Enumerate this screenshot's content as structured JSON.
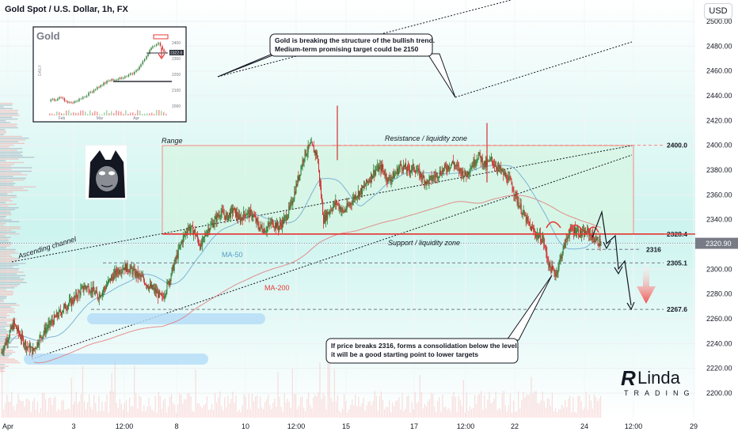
{
  "header": {
    "title": "Gold Spot / U.S. Dollar, 1h, FX",
    "currency_button": "USD"
  },
  "chart_data": {
    "type": "candlestick",
    "symbol": "Gold Spot / U.S. Dollar",
    "timeframe": "1h",
    "exchange": "FX",
    "current_price": "2320.90",
    "y_axis": {
      "ticks": [
        2500,
        2480,
        2460,
        2440,
        2420,
        2400,
        2380,
        2360,
        2340,
        2320,
        2300,
        2280,
        2260,
        2240,
        2220,
        2200
      ],
      "tick_labels": [
        "2500.00",
        "2480.00",
        "2460.00",
        "2440.00",
        "2420.00",
        "2400.00",
        "2380.00",
        "2360.00",
        "2340.00",
        "2320.00",
        "2300.00",
        "2280.00",
        "2260.00",
        "2240.00",
        "2220.00",
        "2200.00"
      ],
      "range": [
        2186,
        2510
      ]
    },
    "x_axis": {
      "ticks": [
        "Apr",
        "3",
        "12:00",
        "8",
        "10",
        "12:00",
        "15",
        "17",
        "12:00",
        "22",
        "24",
        "12:00",
        "29"
      ]
    },
    "close_path": [
      [
        0,
        2232
      ],
      [
        1,
        2244
      ],
      [
        2,
        2256
      ],
      [
        3,
        2246
      ],
      [
        4,
        2238
      ],
      [
        5,
        2234
      ],
      [
        6,
        2244
      ],
      [
        7,
        2252
      ],
      [
        8,
        2258
      ],
      [
        9,
        2264
      ],
      [
        10,
        2270
      ],
      [
        11,
        2274
      ],
      [
        12,
        2280
      ],
      [
        13,
        2286
      ],
      [
        14,
        2284
      ],
      [
        15,
        2278
      ],
      [
        16,
        2284
      ],
      [
        17,
        2292
      ],
      [
        18,
        2298
      ],
      [
        19,
        2302
      ],
      [
        20,
        2300
      ],
      [
        21,
        2296
      ],
      [
        22,
        2292
      ],
      [
        23,
        2286
      ],
      [
        24,
        2282
      ],
      [
        25,
        2276
      ],
      [
        26,
        2290
      ],
      [
        27,
        2306
      ],
      [
        28,
        2322
      ],
      [
        29,
        2334
      ],
      [
        30,
        2330
      ],
      [
        31,
        2318
      ],
      [
        32,
        2332
      ],
      [
        33,
        2338
      ],
      [
        34,
        2346
      ],
      [
        35,
        2342
      ],
      [
        36,
        2348
      ],
      [
        37,
        2340
      ],
      [
        38,
        2346
      ],
      [
        39,
        2344
      ],
      [
        40,
        2334
      ],
      [
        41,
        2332
      ],
      [
        42,
        2338
      ],
      [
        43,
        2334
      ],
      [
        44,
        2340
      ],
      [
        45,
        2352
      ],
      [
        46,
        2372
      ],
      [
        47,
        2392
      ],
      [
        48,
        2400
      ],
      [
        49,
        2392
      ],
      [
        50,
        2340
      ],
      [
        51,
        2348
      ],
      [
        52,
        2354
      ],
      [
        53,
        2346
      ],
      [
        54,
        2352
      ],
      [
        55,
        2360
      ],
      [
        56,
        2364
      ],
      [
        57,
        2372
      ],
      [
        58,
        2380
      ],
      [
        59,
        2382
      ],
      [
        60,
        2372
      ],
      [
        61,
        2376
      ],
      [
        62,
        2384
      ],
      [
        63,
        2380
      ],
      [
        64,
        2382
      ],
      [
        65,
        2376
      ],
      [
        66,
        2370
      ],
      [
        67,
        2374
      ],
      [
        68,
        2378
      ],
      [
        69,
        2382
      ],
      [
        70,
        2386
      ],
      [
        71,
        2380
      ],
      [
        72,
        2376
      ],
      [
        73,
        2384
      ],
      [
        74,
        2392
      ],
      [
        75,
        2384
      ],
      [
        76,
        2388
      ],
      [
        77,
        2382
      ],
      [
        78,
        2376
      ],
      [
        79,
        2370
      ],
      [
        80,
        2356
      ],
      [
        81,
        2344
      ],
      [
        82,
        2334
      ],
      [
        83,
        2328
      ],
      [
        84,
        2324
      ],
      [
        85,
        2302
      ],
      [
        86,
        2296
      ],
      [
        87,
        2314
      ],
      [
        88,
        2330
      ],
      [
        89,
        2332
      ],
      [
        90,
        2328
      ],
      [
        91,
        2330
      ],
      [
        92,
        2324
      ],
      [
        93,
        2321
      ]
    ],
    "path_units": {
      "x": "bar index (1h)",
      "y": "price (USD)"
    },
    "levels": [
      {
        "label": "2400.0",
        "price": 2400.0,
        "style": "dashed"
      },
      {
        "label": "2328.4",
        "price": 2328.4,
        "style": "solid"
      },
      {
        "label": "2316",
        "price": 2316,
        "style": "dashed"
      },
      {
        "label": "2305.1",
        "price": 2305.1,
        "style": "dashed"
      },
      {
        "label": "2267.6",
        "price": 2267.6,
        "style": "dashed"
      }
    ],
    "zones": {
      "range_label": "Range",
      "resistance_label": "Resistance / liquidity zone",
      "support_label": "Support / liquidity zone"
    },
    "channel_label": "Ascending channel",
    "ma50_label": "MA-50",
    "ma200_label": "MA-200"
  },
  "callouts": {
    "top": [
      "Gold is breaking the structure of the bullish trend.",
      "Medium-term promising target could be 2150"
    ],
    "bottom": [
      "If price breaks 2316, forms a consolidation below the level,",
      "it will be a good starting point to lower targets"
    ]
  },
  "inset": {
    "title": "Gold",
    "side_label": "DAILY",
    "y_labels": [
      "2400",
      "2300",
      "2200",
      "2100",
      "2000"
    ],
    "x_labels": [
      "Feb",
      "Mar",
      "Apr"
    ],
    "price_tag": "2322.0"
  },
  "logo": {
    "line1": "Linda",
    "line2": "TRADING"
  },
  "colors": {
    "up": "#26a69a",
    "down": "#ef5350",
    "candle_up_body": "#2e7d32",
    "candle_down_body": "#d32f2f",
    "ma50": "#7fb3d5",
    "ma200": "#e57373",
    "support_line": "#e53935",
    "range_fill": "#d7f5e3",
    "range_border": "#f28b82",
    "price_tag_bg": "#787b86",
    "background_grad_top": "#ffffff",
    "background_grad_mid": "#b2efe8"
  }
}
